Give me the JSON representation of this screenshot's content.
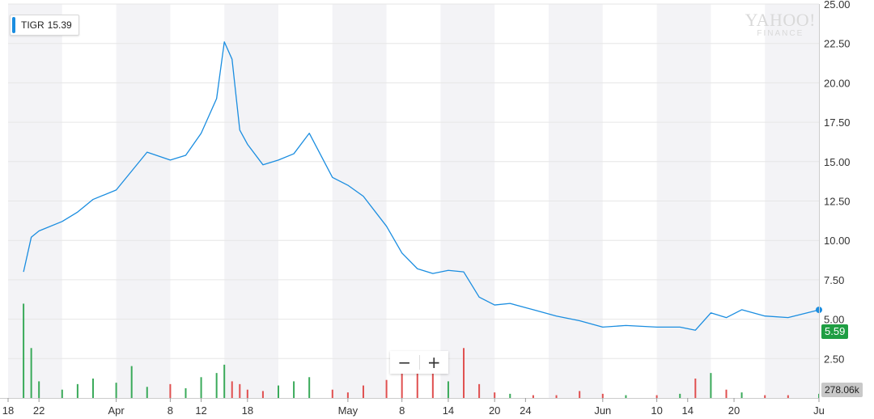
{
  "legend": {
    "symbol": "TIGR",
    "value": "15.39",
    "accent": "#1a8de0"
  },
  "watermark": {
    "line1": "YAHOO!",
    "line2": "FINANCE"
  },
  "zoom": {
    "minus_label": "−",
    "plus_label": "+"
  },
  "last_price": {
    "label": "5.59",
    "color": "#1f9e43"
  },
  "volume_tag": {
    "label": "278.06k"
  },
  "colors": {
    "line": "#1a8de0",
    "vol_up": "#3aaa5a",
    "vol_down": "#e05050",
    "band": "#f3f3f6",
    "grid": "#e6e6e6"
  },
  "chart_data": {
    "type": "line",
    "title": "",
    "xlabel": "",
    "ylabel": "",
    "ylim": [
      0,
      25
    ],
    "y_ticks": [
      "2.50",
      "5.00",
      "7.50",
      "10.00",
      "12.50",
      "15.00",
      "17.50",
      "20.00",
      "22.50",
      "25.00"
    ],
    "x_ticks": [
      "18",
      "22",
      "Apr",
      "8",
      "12",
      "18",
      "May",
      "8",
      "14",
      "20",
      "24",
      "Jun",
      "10",
      "14",
      "20",
      "Ju"
    ],
    "grid": true,
    "series": [
      {
        "name": "TIGR",
        "x": [
          "2019-03-20",
          "2019-03-21",
          "2019-03-22",
          "2019-03-25",
          "2019-03-27",
          "2019-03-29",
          "2019-04-01",
          "2019-04-03",
          "2019-04-05",
          "2019-04-08",
          "2019-04-10",
          "2019-04-12",
          "2019-04-14",
          "2019-04-15",
          "2019-04-16",
          "2019-04-17",
          "2019-04-18",
          "2019-04-20",
          "2019-04-22",
          "2019-04-24",
          "2019-04-26",
          "2019-04-29",
          "2019-05-01",
          "2019-05-03",
          "2019-05-06",
          "2019-05-08",
          "2019-05-10",
          "2019-05-12",
          "2019-05-14",
          "2019-05-16",
          "2019-05-18",
          "2019-05-20",
          "2019-05-22",
          "2019-05-25",
          "2019-05-28",
          "2019-05-31",
          "2019-06-03",
          "2019-06-06",
          "2019-06-10",
          "2019-06-13",
          "2019-06-15",
          "2019-06-17",
          "2019-06-19",
          "2019-06-21",
          "2019-06-24",
          "2019-06-27",
          "2019-07-01"
        ],
        "values": [
          8.0,
          10.2,
          10.6,
          11.2,
          11.8,
          12.6,
          13.2,
          14.4,
          15.6,
          15.1,
          15.4,
          16.8,
          19.0,
          22.6,
          21.5,
          17.0,
          16.1,
          14.8,
          15.1,
          15.5,
          16.8,
          14.0,
          13.5,
          12.8,
          10.9,
          9.2,
          8.2,
          7.9,
          8.1,
          8.0,
          6.4,
          5.9,
          6.0,
          5.6,
          5.2,
          4.9,
          4.5,
          4.6,
          4.5,
          4.5,
          4.3,
          5.4,
          5.1,
          5.6,
          5.2,
          5.1,
          5.59
        ]
      },
      {
        "name": "Volume",
        "values": [
          6.8,
          3.6,
          1.2,
          0.6,
          1.0,
          1.4,
          1.1,
          2.3,
          0.8,
          1.0,
          0.7,
          1.5,
          1.8,
          2.4,
          1.2,
          1.0,
          0.6,
          0.5,
          0.9,
          1.2,
          1.5,
          0.6,
          0.4,
          0.9,
          1.3,
          2.1,
          2.4,
          3.0,
          1.2,
          3.6,
          1.0,
          0.4,
          0.3,
          0.2,
          0.2,
          0.5,
          0.3,
          0.2,
          0.2,
          0.3,
          1.4,
          1.8,
          0.6,
          0.4,
          0.2,
          0.2,
          0.3
        ]
      }
    ],
    "legend": "top-left"
  }
}
